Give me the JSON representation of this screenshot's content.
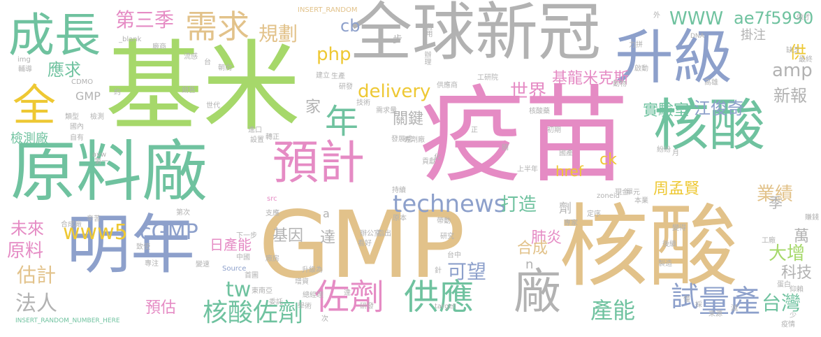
{
  "palette": {
    "green": "#a6d86a",
    "yellow": "#eec833",
    "teal": "#6fc29f",
    "gray": "#b2b2b2",
    "pink": "#e58bc4",
    "blue": "#8da0cb",
    "tan": "#e2c28a"
  },
  "words": [
    {
      "text": "基米",
      "color": "green"
    },
    {
      "text": "疫苗",
      "color": "pink"
    },
    {
      "text": "GMP",
      "color": "tan"
    },
    {
      "text": "核酸",
      "color": "tan"
    },
    {
      "text": "全球新冠",
      "color": "gray"
    },
    {
      "text": "原料廠",
      "color": "teal"
    },
    {
      "text": "升級",
      "color": "blue"
    },
    {
      "text": "核酸",
      "color": "teal"
    },
    {
      "text": "明年",
      "color": "blue"
    },
    {
      "text": "成長",
      "color": "teal"
    },
    {
      "text": "預計",
      "color": "pink"
    },
    {
      "text": "全",
      "color": "yellow"
    },
    {
      "text": "廠",
      "color": "gray"
    },
    {
      "text": "需求",
      "color": "tan"
    },
    {
      "text": "年",
      "color": "teal"
    },
    {
      "text": "供應",
      "color": "teal"
    },
    {
      "text": "佐劑",
      "color": "pink"
    },
    {
      "text": "technews",
      "color": "blue"
    },
    {
      "text": "量產",
      "color": "blue"
    },
    {
      "text": "核酸佐劑",
      "color": "teal"
    },
    {
      "text": "第三季",
      "color": "pink"
    },
    {
      "text": "規劃",
      "color": "tan"
    },
    {
      "text": "www5",
      "color": "yellow"
    },
    {
      "text": "cGMP",
      "color": "blue"
    },
    {
      "text": "delivery",
      "color": "yellow"
    },
    {
      "text": "應求",
      "color": "teal"
    },
    {
      "text": "WWW",
      "color": "teal"
    },
    {
      "text": "ae7f5990",
      "color": "teal"
    },
    {
      "text": "世界",
      "color": "pink"
    },
    {
      "text": "基龍米克斯",
      "color": "pink"
    },
    {
      "text": "實驗室",
      "color": "teal"
    },
    {
      "text": "江俊奇",
      "color": "blue"
    },
    {
      "text": "周孟賢",
      "color": "yellow"
    },
    {
      "text": "業績",
      "color": "tan"
    },
    {
      "text": "大增",
      "color": "green"
    },
    {
      "text": "台灣",
      "color": "teal"
    },
    {
      "text": "產能",
      "color": "teal"
    },
    {
      "text": "可望",
      "color": "blue"
    },
    {
      "text": "打造",
      "color": "teal"
    },
    {
      "text": "肺炎",
      "color": "pink"
    },
    {
      "text": "合成",
      "color": "tan"
    },
    {
      "text": "試",
      "color": "blue"
    },
    {
      "text": "原料",
      "color": "pink"
    },
    {
      "text": "估計",
      "color": "tan"
    },
    {
      "text": "法人",
      "color": "gray"
    },
    {
      "text": "未來",
      "color": "pink"
    },
    {
      "text": "預估",
      "color": "pink"
    },
    {
      "text": "tw",
      "color": "teal"
    },
    {
      "text": "php",
      "color": "yellow"
    },
    {
      "text": "cb",
      "color": "blue"
    },
    {
      "text": "amp",
      "color": "gray"
    },
    {
      "text": "新報",
      "color": "gray"
    },
    {
      "text": "科技",
      "color": "gray"
    },
    {
      "text": "基因",
      "color": "gray"
    },
    {
      "text": "達",
      "color": "gray"
    },
    {
      "text": "日產能",
      "color": "pink"
    },
    {
      "text": "家",
      "color": "gray"
    },
    {
      "text": "關鍵",
      "color": "gray"
    },
    {
      "text": "供",
      "color": "yellow"
    },
    {
      "text": "ck",
      "color": "yellow"
    },
    {
      "text": "href",
      "color": "yellow"
    },
    {
      "text": "檢測廠",
      "color": "teal"
    },
    {
      "text": "GMP",
      "color": "gray"
    },
    {
      "text": "掛注",
      "color": "gray"
    },
    {
      "text": "萬",
      "color": "gray"
    },
    {
      "text": "季",
      "color": "gray"
    },
    {
      "text": "n",
      "color": "gray"
    },
    {
      "text": "a",
      "color": "gray"
    },
    {
      "text": "劑",
      "color": "gray"
    },
    {
      "text": "步",
      "color": "gray"
    },
    {
      "text": "INSERT_RANDOM",
      "color": "tan"
    },
    {
      "text": "INSERT_RANDOM_NUMBER_HERE",
      "color": "teal"
    },
    {
      "text": "_blank",
      "color": "gray"
    },
    {
      "text": "DNA",
      "color": "gray"
    },
    {
      "text": "Source",
      "color": "blue"
    },
    {
      "text": "target",
      "color": "gray"
    },
    {
      "text": "zoneid",
      "color": "gray"
    },
    {
      "text": "img",
      "color": "gray"
    },
    {
      "text": "CDMO",
      "color": "gray"
    },
    {
      "text": "avw",
      "color": "gray"
    },
    {
      "text": "src",
      "color": "pink"
    },
    {
      "text": "費用",
      "color": "gray"
    },
    {
      "text": "辦理",
      "color": "gray"
    },
    {
      "text": "廠商",
      "color": "gray"
    },
    {
      "text": "流感",
      "color": "gray"
    },
    {
      "text": "朝向",
      "color": "gray"
    },
    {
      "text": "建立",
      "color": "gray"
    },
    {
      "text": "生產",
      "color": "gray"
    },
    {
      "text": "研發",
      "color": "gray"
    },
    {
      "text": "技術",
      "color": "gray"
    },
    {
      "text": "工研院",
      "color": "gray"
    },
    {
      "text": "供應商",
      "color": "gray"
    },
    {
      "text": "核酸藥",
      "color": "gray"
    },
    {
      "text": "初期",
      "color": "gray"
    },
    {
      "text": "需求量",
      "color": "gray"
    },
    {
      "text": "進口",
      "color": "gray"
    },
    {
      "text": "轉正",
      "color": "gray"
    },
    {
      "text": "發展成",
      "color": "gray"
    },
    {
      "text": "佐劑廠",
      "color": "gray"
    },
    {
      "text": "國產",
      "color": "gray"
    },
    {
      "text": "貢獻",
      "color": "gray"
    },
    {
      "text": "上半年",
      "color": "gray"
    },
    {
      "text": "高雄",
      "color": "gray"
    },
    {
      "text": "啟動",
      "color": "gray"
    },
    {
      "text": "動物",
      "color": "gray"
    },
    {
      "text": "紛紛",
      "color": "gray"
    },
    {
      "text": "力拼",
      "color": "gray"
    },
    {
      "text": "外",
      "color": "gray"
    },
    {
      "text": "做才",
      "color": "gray"
    },
    {
      "text": "缺乏",
      "color": "gray"
    },
    {
      "text": "最終",
      "color": "gray"
    },
    {
      "text": "輔導",
      "color": "gray"
    },
    {
      "text": "約",
      "color": "gray"
    },
    {
      "text": "銷售",
      "color": "gray"
    },
    {
      "text": "世代",
      "color": "gray"
    },
    {
      "text": "類型",
      "color": "gray"
    },
    {
      "text": "檢測",
      "color": "gray"
    },
    {
      "text": "國內",
      "color": "gray"
    },
    {
      "text": "自有",
      "color": "gray"
    },
    {
      "text": "第一",
      "color": "gray"
    },
    {
      "text": "設置",
      "color": "gray"
    },
    {
      "text": "化",
      "color": "gray"
    },
    {
      "text": "國",
      "color": "gray"
    },
    {
      "text": "持續",
      "color": "gray"
    },
    {
      "text": "專家",
      "color": "gray"
    },
    {
      "text": "月",
      "color": "gray"
    },
    {
      "text": "現金",
      "color": "gray"
    },
    {
      "text": "單元",
      "color": "gray"
    },
    {
      "text": "本業",
      "color": "gray"
    },
    {
      "text": "定序",
      "color": "gray"
    },
    {
      "text": "支應",
      "color": "gray"
    },
    {
      "text": "原本",
      "color": "gray"
    },
    {
      "text": "帶動",
      "color": "gray"
    },
    {
      "text": "研究",
      "color": "gray"
    },
    {
      "text": "指出",
      "color": "gray"
    },
    {
      "text": "辦公室",
      "color": "gray"
    },
    {
      "text": "看好",
      "color": "gray"
    },
    {
      "text": "變得",
      "color": "gray"
    },
    {
      "text": "後續",
      "color": "gray"
    },
    {
      "text": "工廠",
      "color": "gray"
    },
    {
      "text": "賺錢",
      "color": "gray"
    },
    {
      "text": "合成廠",
      "color": "gray"
    },
    {
      "text": "辛苦",
      "color": "gray"
    },
    {
      "text": "致使",
      "color": "gray"
    },
    {
      "text": "專注",
      "color": "gray"
    },
    {
      "text": "變速",
      "color": "gray"
    },
    {
      "text": "中國",
      "color": "gray"
    },
    {
      "text": "廠房",
      "color": "gray"
    },
    {
      "text": "首圖",
      "color": "gray"
    },
    {
      "text": "升級為",
      "color": "gray"
    },
    {
      "text": "台中",
      "color": "gray"
    },
    {
      "text": "製造",
      "color": "gray"
    },
    {
      "text": "蛋白",
      "color": "gray"
    },
    {
      "text": "仰賴",
      "color": "gray"
    },
    {
      "text": "東南亞",
      "color": "gray"
    },
    {
      "text": "委託",
      "color": "gray"
    },
    {
      "text": "增資",
      "color": "gray"
    },
    {
      "text": "總經理",
      "color": "gray"
    },
    {
      "text": "學術",
      "color": "gray"
    },
    {
      "text": "研發",
      "color": "gray"
    },
    {
      "text": "採",
      "color": "gray"
    },
    {
      "text": "來源",
      "color": "gray"
    },
    {
      "text": "疫情",
      "color": "gray"
    },
    {
      "text": "次",
      "color": "gray"
    },
    {
      "text": "下一步",
      "color": "gray"
    },
    {
      "text": "第次",
      "color": "gray"
    },
    {
      "text": "正",
      "color": "gray"
    },
    {
      "text": "針",
      "color": "gray"
    },
    {
      "text": "達",
      "color": "gray"
    },
    {
      "text": "僅",
      "color": "gray"
    },
    {
      "text": "台",
      "color": "gray"
    },
    {
      "text": "減",
      "color": "gray"
    },
    {
      "text": "少",
      "color": "gray"
    }
  ]
}
